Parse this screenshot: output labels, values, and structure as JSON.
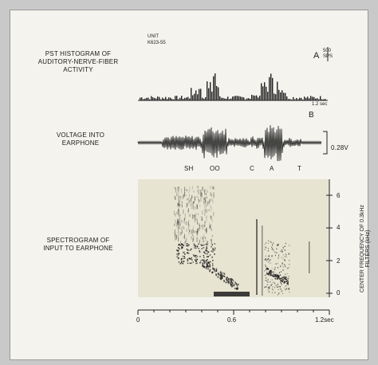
{
  "figure": {
    "panel_a": {
      "title": "PST HISTOGRAM OF AUDITORY-NERVE-FIBER ACTIVITY",
      "unit_label": "UNIT",
      "unit_id": "K623-55",
      "panel_letter": "A",
      "scale_value": "500",
      "scale_unit": "SPS",
      "time_label": "1.2 sec"
    },
    "panel_b": {
      "title": "VOLTAGE INTO EARPHONE",
      "panel_letter": "B",
      "scale_label": "0.28V",
      "phonemes": [
        "SH",
        "OO",
        "C",
        "A",
        "T"
      ]
    },
    "panel_c": {
      "title": "SPECTROGRAM OF INPUT TO EARPHONE",
      "y_axis_label": "CENTER FREQUENCY OF 0.3kHz FILTERS (kHz)",
      "y_ticks": [
        "0",
        "2",
        "4",
        "6"
      ],
      "x_ticks": [
        "0",
        "0.6",
        "1.2sec"
      ]
    }
  }
}
